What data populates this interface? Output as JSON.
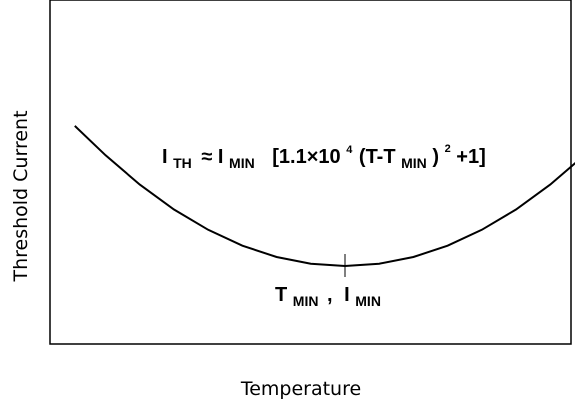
{
  "chart_data": {
    "type": "line",
    "xlabel": "Temperature",
    "ylabel": "Threshold Current",
    "x_ticks": false,
    "y_ticks": false,
    "grid": false,
    "legend": "none",
    "series": [
      {
        "x": [
          -0.79,
          -0.7,
          -0.6,
          -0.5,
          -0.4,
          -0.3,
          -0.2,
          -0.1,
          0.0,
          0.1,
          0.2,
          0.3,
          0.4,
          0.5,
          0.6,
          0.7,
          0.75
        ],
        "y": [
          1.62,
          1.49,
          1.36,
          1.25,
          1.16,
          1.09,
          1.04,
          1.01,
          1.0,
          1.01,
          1.04,
          1.09,
          1.16,
          1.25,
          1.36,
          1.49,
          1.56
        ],
        "color": "#000000"
      }
    ],
    "minimum_point": {
      "x": 0.0,
      "y": 1.0
    },
    "annotations": {
      "equation": {
        "i_main": "I",
        "i_sub": "TH",
        "approx": "≈",
        "i2_main": "I",
        "i2_sub": "MIN",
        "bracket_open": "[1.1×10",
        "exp": "4",
        "paren_open": "(T-T",
        "t_sub": "MIN",
        "paren_close": ")",
        "exp2": "2",
        "tail": "+1]"
      },
      "minimum_label": {
        "t_main": "T",
        "t_sub": "MIN",
        "comma": ",",
        "i_main": "I",
        "i_sub": "MIN"
      }
    }
  }
}
